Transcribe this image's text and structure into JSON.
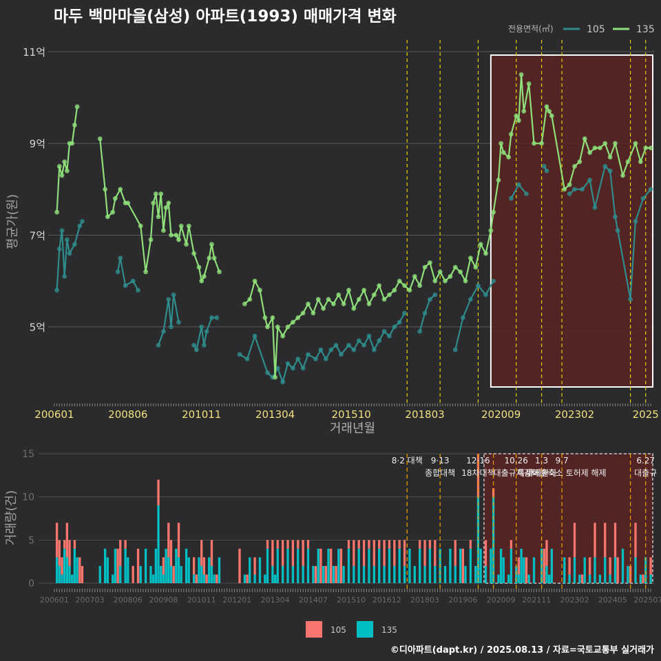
{
  "title": "마두 백마마을(삼성) 아파트(1993) 매매가격 변화",
  "footer": "©디아파트(dapt.kr) / 2025.08.13 / 자료=국토교통부 실거래가",
  "colors": {
    "background": "#2b2b2d",
    "series_105": "#2e8c8c",
    "series_135": "#8fe07a",
    "bar_105": "#f8766d",
    "bar_135": "#00bfc4",
    "policy_line": "#e5d000",
    "bar_policy_line": "#e59a00",
    "highlight_fill": "#5a2323"
  },
  "chart_data": [
    {
      "type": "line",
      "title": "마두 백마마을(삼성) 아파트(1993) 매매가격 변화",
      "xlabel": "거래년월",
      "ylabel": "평균가(원)",
      "legend_title": "전용면적(㎡)",
      "legend_position": "top-right",
      "grid": true,
      "xlim": [
        "2006-01",
        "2025-08"
      ],
      "ylim": [
        3.3,
        11.3
      ],
      "x_ticks": [
        "200601",
        "200806",
        "201011",
        "201304",
        "201510",
        "201803",
        "202009",
        "202302",
        "2025"
      ],
      "y_ticks": [
        "5억",
        "7억",
        "9억",
        "11억"
      ],
      "y_tick_values": [
        5,
        7,
        9,
        11
      ],
      "policy_markers": [
        "2017-08",
        "2018-09",
        "2019-12",
        "2021-03",
        "2022-01",
        "2022-09",
        "2024-12",
        "2025-06"
      ],
      "highlight_range": [
        "2020-05",
        "2025-08"
      ],
      "series": [
        {
          "name": "105",
          "points": [
            [
              "2006-02",
              5.8
            ],
            [
              "2006-03",
              6.7
            ],
            [
              "2006-04",
              7.1
            ],
            [
              "2006-05",
              6.1
            ],
            [
              "2006-06",
              6.9
            ],
            [
              "2006-07",
              6.6
            ],
            [
              "2006-09",
              6.8
            ],
            [
              "2006-11",
              7.2
            ],
            [
              "2006-12",
              7.3
            ],
            [
              "2008-02",
              6.2
            ],
            [
              "2008-03",
              6.5
            ],
            [
              "2008-05",
              5.9
            ],
            [
              "2008-08",
              6.0
            ],
            [
              "2008-10",
              5.8
            ],
            [
              "2009-06",
              4.6
            ],
            [
              "2009-08",
              4.9
            ],
            [
              "2009-10",
              5.6
            ],
            [
              "2009-11",
              5.0
            ],
            [
              "2009-12",
              5.7
            ],
            [
              "2010-02",
              5.1
            ],
            [
              "2010-08",
              4.6
            ],
            [
              "2010-09",
              4.5
            ],
            [
              "2010-11",
              5.0
            ],
            [
              "2010-12",
              4.6
            ],
            [
              "2011-01",
              4.9
            ],
            [
              "2011-03",
              5.2
            ],
            [
              "2011-05",
              5.2
            ],
            [
              "2012-02",
              4.4
            ],
            [
              "2012-05",
              4.3
            ],
            [
              "2012-08",
              4.8
            ],
            [
              "2013-01",
              4.0
            ],
            [
              "2013-03",
              3.9
            ],
            [
              "2013-05",
              4.1
            ],
            [
              "2013-07",
              3.8
            ],
            [
              "2013-09",
              4.2
            ],
            [
              "2013-11",
              4.1
            ],
            [
              "2014-01",
              4.3
            ],
            [
              "2014-03",
              4.1
            ],
            [
              "2014-05",
              4.4
            ],
            [
              "2014-08",
              4.3
            ],
            [
              "2014-10",
              4.5
            ],
            [
              "2014-12",
              4.3
            ],
            [
              "2015-02",
              4.5
            ],
            [
              "2015-04",
              4.6
            ],
            [
              "2015-06",
              4.4
            ],
            [
              "2015-09",
              4.6
            ],
            [
              "2015-11",
              4.5
            ],
            [
              "2016-01",
              4.7
            ],
            [
              "2016-03",
              4.6
            ],
            [
              "2016-05",
              4.8
            ],
            [
              "2016-07",
              4.5
            ],
            [
              "2016-09",
              4.7
            ],
            [
              "2016-11",
              4.9
            ],
            [
              "2017-01",
              4.8
            ],
            [
              "2017-03",
              5.0
            ],
            [
              "2017-05",
              5.1
            ],
            [
              "2017-07",
              5.3
            ],
            [
              "2018-01",
              4.9
            ],
            [
              "2018-03",
              5.3
            ],
            [
              "2018-05",
              5.6
            ],
            [
              "2018-07",
              5.7
            ],
            [
              "2019-03",
              4.5
            ],
            [
              "2019-06",
              5.2
            ],
            [
              "2019-09",
              5.6
            ],
            [
              "2019-12",
              5.9
            ],
            [
              "2020-03",
              5.7
            ],
            [
              "2020-06",
              6.0
            ],
            [
              "2021-01",
              7.8
            ],
            [
              "2021-04",
              8.1
            ],
            [
              "2021-07",
              7.9
            ],
            [
              "2022-02",
              8.5
            ],
            [
              "2022-03",
              8.4
            ],
            [
              "2022-12",
              7.9
            ],
            [
              "2023-02",
              8.0
            ],
            [
              "2023-05",
              8.0
            ],
            [
              "2023-08",
              8.2
            ],
            [
              "2023-10",
              7.6
            ],
            [
              "2024-02",
              8.5
            ],
            [
              "2024-04",
              8.4
            ],
            [
              "2024-06",
              7.4
            ],
            [
              "2024-07",
              7.1
            ],
            [
              "2024-12",
              5.6
            ],
            [
              "2025-02",
              7.3
            ],
            [
              "2025-05",
              7.8
            ],
            [
              "2025-08",
              8.0
            ]
          ]
        },
        {
          "name": "135",
          "points": [
            [
              "2006-02",
              7.5
            ],
            [
              "2006-03",
              8.5
            ],
            [
              "2006-04",
              8.3
            ],
            [
              "2006-05",
              8.6
            ],
            [
              "2006-06",
              8.4
            ],
            [
              "2006-07",
              9.0
            ],
            [
              "2006-08",
              9.0
            ],
            [
              "2006-09",
              9.4
            ],
            [
              "2006-10",
              9.8
            ],
            [
              "2007-07",
              9.1
            ],
            [
              "2007-09",
              8.0
            ],
            [
              "2007-10",
              7.4
            ],
            [
              "2007-12",
              7.5
            ],
            [
              "2008-01",
              7.8
            ],
            [
              "2008-03",
              8.0
            ],
            [
              "2008-05",
              7.7
            ],
            [
              "2008-06",
              7.7
            ],
            [
              "2008-11",
              7.2
            ],
            [
              "2009-01",
              6.2
            ],
            [
              "2009-03",
              6.9
            ],
            [
              "2009-04",
              7.7
            ],
            [
              "2009-05",
              7.9
            ],
            [
              "2009-06",
              7.4
            ],
            [
              "2009-07",
              7.9
            ],
            [
              "2009-08",
              7.1
            ],
            [
              "2009-09",
              7.6
            ],
            [
              "2009-10",
              7.7
            ],
            [
              "2009-11",
              7.0
            ],
            [
              "2010-01",
              7.0
            ],
            [
              "2010-02",
              6.9
            ],
            [
              "2010-03",
              7.2
            ],
            [
              "2010-05",
              6.8
            ],
            [
              "2010-06",
              7.2
            ],
            [
              "2010-08",
              6.6
            ],
            [
              "2010-10",
              6.3
            ],
            [
              "2010-11",
              6.0
            ],
            [
              "2010-12",
              6.1
            ],
            [
              "2011-02",
              6.5
            ],
            [
              "2011-03",
              6.8
            ],
            [
              "2011-04",
              6.5
            ],
            [
              "2011-06",
              6.2
            ],
            [
              "2012-04",
              5.5
            ],
            [
              "2012-06",
              5.6
            ],
            [
              "2012-08",
              6.0
            ],
            [
              "2012-10",
              5.8
            ],
            [
              "2012-12",
              5.2
            ],
            [
              "2013-01",
              5.0
            ],
            [
              "2013-03",
              5.2
            ],
            [
              "2013-04",
              3.9
            ],
            [
              "2013-05",
              5.0
            ],
            [
              "2013-07",
              4.8
            ],
            [
              "2013-09",
              5.0
            ],
            [
              "2013-11",
              5.1
            ],
            [
              "2014-01",
              5.2
            ],
            [
              "2014-03",
              5.3
            ],
            [
              "2014-05",
              5.5
            ],
            [
              "2014-07",
              5.3
            ],
            [
              "2014-09",
              5.6
            ],
            [
              "2014-11",
              5.4
            ],
            [
              "2015-01",
              5.6
            ],
            [
              "2015-03",
              5.5
            ],
            [
              "2015-05",
              5.7
            ],
            [
              "2015-07",
              5.5
            ],
            [
              "2015-09",
              5.8
            ],
            [
              "2015-11",
              5.4
            ],
            [
              "2016-01",
              5.6
            ],
            [
              "2016-03",
              5.8
            ],
            [
              "2016-05",
              5.5
            ],
            [
              "2016-07",
              5.7
            ],
            [
              "2016-09",
              5.9
            ],
            [
              "2016-11",
              5.6
            ],
            [
              "2017-01",
              5.7
            ],
            [
              "2017-03",
              5.8
            ],
            [
              "2017-05",
              6.0
            ],
            [
              "2017-07",
              5.9
            ],
            [
              "2017-09",
              5.8
            ],
            [
              "2017-11",
              6.1
            ],
            [
              "2018-01",
              5.9
            ],
            [
              "2018-03",
              6.3
            ],
            [
              "2018-05",
              6.4
            ],
            [
              "2018-07",
              6.0
            ],
            [
              "2018-09",
              6.2
            ],
            [
              "2018-11",
              6.0
            ],
            [
              "2019-01",
              6.1
            ],
            [
              "2019-03",
              6.3
            ],
            [
              "2019-05",
              6.2
            ],
            [
              "2019-07",
              6.0
            ],
            [
              "2019-09",
              6.5
            ],
            [
              "2019-11",
              6.3
            ],
            [
              "2020-01",
              6.8
            ],
            [
              "2020-03",
              6.6
            ],
            [
              "2020-05",
              7.1
            ],
            [
              "2020-06",
              7.5
            ],
            [
              "2020-08",
              8.2
            ],
            [
              "2020-09",
              9.0
            ],
            [
              "2020-10",
              8.8
            ],
            [
              "2020-12",
              8.7
            ],
            [
              "2021-01",
              9.2
            ],
            [
              "2021-03",
              9.6
            ],
            [
              "2021-04",
              9.5
            ],
            [
              "2021-05",
              10.5
            ],
            [
              "2021-06",
              9.7
            ],
            [
              "2021-08",
              10.3
            ],
            [
              "2021-10",
              9.0
            ],
            [
              "2022-01",
              9.0
            ],
            [
              "2022-03",
              9.8
            ],
            [
              "2022-04",
              9.7
            ],
            [
              "2022-05",
              9.6
            ],
            [
              "2022-10",
              8.0
            ],
            [
              "2022-12",
              8.1
            ],
            [
              "2023-02",
              8.5
            ],
            [
              "2023-04",
              8.6
            ],
            [
              "2023-06",
              9.1
            ],
            [
              "2023-08",
              8.8
            ],
            [
              "2023-10",
              8.9
            ],
            [
              "2023-12",
              8.9
            ],
            [
              "2024-02",
              9.0
            ],
            [
              "2024-04",
              8.7
            ],
            [
              "2024-06",
              9.0
            ],
            [
              "2024-09",
              8.3
            ],
            [
              "2024-11",
              8.6
            ],
            [
              "2025-02",
              9.0
            ],
            [
              "2025-04",
              8.6
            ],
            [
              "2025-06",
              8.9
            ],
            [
              "2025-08",
              8.9
            ]
          ]
        }
      ]
    },
    {
      "type": "bar",
      "ylabel": "거래량(건)",
      "stacked": true,
      "ylim": [
        0,
        15
      ],
      "y_ticks": [
        "0",
        "5",
        "10",
        "15"
      ],
      "y_tick_values": [
        0,
        5,
        10,
        15
      ],
      "x_ticks": [
        "200601",
        "200703",
        "200806",
        "200908",
        "201011",
        "201201",
        "201304",
        "201407",
        "201510",
        "201612",
        "201803",
        "201906",
        "202009",
        "202111",
        "202302",
        "202405",
        "202507"
      ],
      "legend_position": "bottom",
      "legend": [
        "105",
        "135"
      ],
      "highlight_range": [
        "2020-05",
        "2025-08"
      ],
      "policy_annotations": [
        {
          "date": "2017-08",
          "line1": "8·2 대책",
          "line2": ""
        },
        {
          "date": "2018-09",
          "line1": "9·13",
          "line2": "종합대책"
        },
        {
          "date": "2019-12",
          "line1": "12·16",
          "line2": "18차대책"
        },
        {
          "date": "2020-06",
          "line1": "",
          "line2": ""
        },
        {
          "date": "2021-03",
          "line1": "10.26",
          "line2": "대출규제강화"
        },
        {
          "date": "2022-01",
          "line1": "1.3",
          "line2": "규제완화"
        },
        {
          "date": "2022-09",
          "line1": "9.7",
          "line2": "특례대출축소 토허제 해제"
        },
        {
          "date": "2024-12",
          "line1": "",
          "line2": ""
        },
        {
          "date": "2025-06",
          "line1": "6.27",
          "line2": "대출규"
        }
      ],
      "bar_seed_note": "monthly stacked counts",
      "peak_months": {
        "2009-06": [
          3,
          9
        ],
        "2019-12": [
          5,
          10
        ],
        "2007-03": [
          0,
          0
        ],
        "2020-06": [
          1,
          10
        ]
      }
    }
  ]
}
